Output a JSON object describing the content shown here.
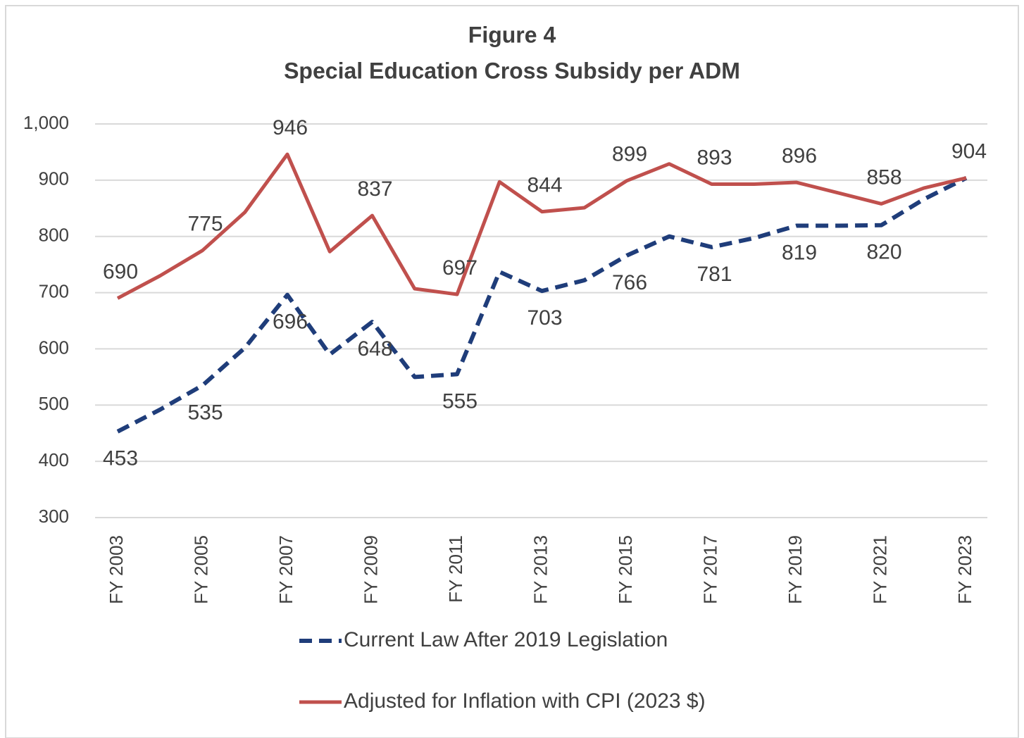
{
  "chart_data": {
    "type": "line",
    "title": "Figure 4",
    "subtitle": "Special Education Cross Subsidy per ADM",
    "categories": [
      "FY 2003",
      null,
      "FY 2005",
      null,
      "FY 2007",
      null,
      "FY 2009",
      null,
      "FY 2011",
      null,
      "FY 2013",
      null,
      "FY 2015",
      null,
      "FY 2017",
      null,
      "FY 2019",
      null,
      "FY 2021",
      null,
      "FY 2023"
    ],
    "series": [
      {
        "name": "Current Law After 2019 Legislation",
        "color": "#1f3d7a",
        "dashed": true,
        "values": [
          453,
          492,
          535,
          602,
          696,
          590,
          648,
          550,
          555,
          737,
          703,
          722,
          766,
          800,
          781,
          797,
          819,
          819,
          820,
          866,
          904
        ],
        "labeled_points": [
          0,
          2,
          4,
          6,
          8,
          10,
          12,
          14,
          16,
          18
        ]
      },
      {
        "name": "Adjusted for Inflation with CPI (2023 $)",
        "color": "#c0504d",
        "dashed": false,
        "values": [
          690,
          730,
          775,
          843,
          946,
          773,
          837,
          707,
          697,
          897,
          844,
          851,
          899,
          929,
          893,
          893,
          896,
          877,
          858,
          886,
          904
        ],
        "labeled_points": [
          0,
          2,
          4,
          6,
          8,
          10,
          12,
          14,
          16,
          18,
          20
        ]
      }
    ],
    "ylim": [
      300,
      1000
    ],
    "yticks": [
      300,
      400,
      500,
      600,
      700,
      800,
      900,
      {
        "value": 1000,
        "label": "1,000"
      }
    ],
    "grid": true,
    "legend": "bottom"
  }
}
